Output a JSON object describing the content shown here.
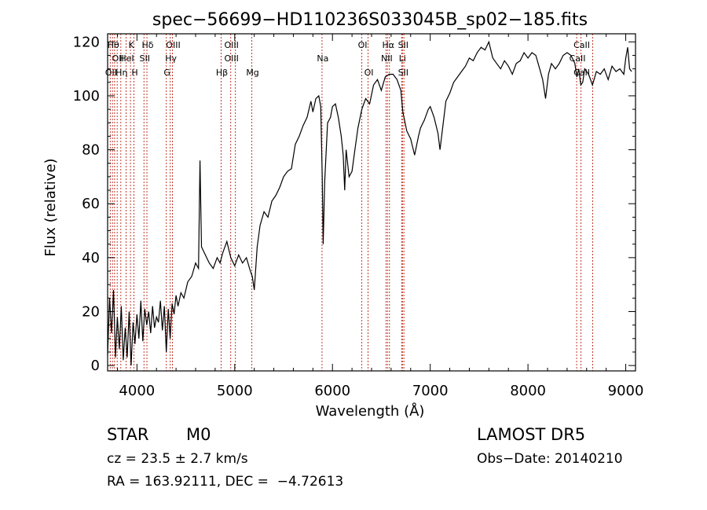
{
  "chart_data": {
    "type": "line",
    "title": "spec−56699−HD110236S033045B_sp02−185.fits",
    "xlabel": "Wavelength (Å)",
    "ylabel": "Flux (relative)",
    "xlim": [
      3700,
      9100
    ],
    "ylim": [
      -2,
      123
    ],
    "xticks": [
      4000,
      5000,
      6000,
      7000,
      8000,
      9000
    ],
    "yticks": [
      0,
      20,
      40,
      60,
      80,
      100,
      120
    ],
    "grid": false,
    "series": [
      {
        "values": [
          [
            3700,
            4
          ],
          [
            3720,
            25
          ],
          [
            3740,
            12
          ],
          [
            3760,
            28
          ],
          [
            3780,
            3
          ],
          [
            3800,
            18
          ],
          [
            3820,
            6
          ],
          [
            3840,
            22
          ],
          [
            3860,
            2
          ],
          [
            3880,
            14
          ],
          [
            3900,
            3
          ],
          [
            3920,
            20
          ],
          [
            3940,
            0
          ],
          [
            3960,
            16
          ],
          [
            3980,
            8
          ],
          [
            4000,
            19
          ],
          [
            4020,
            10
          ],
          [
            4040,
            24
          ],
          [
            4060,
            9
          ],
          [
            4080,
            21
          ],
          [
            4100,
            15
          ],
          [
            4120,
            20
          ],
          [
            4140,
            12
          ],
          [
            4160,
            22
          ],
          [
            4180,
            14
          ],
          [
            4200,
            18
          ],
          [
            4220,
            16
          ],
          [
            4240,
            24
          ],
          [
            4260,
            13
          ],
          [
            4280,
            22
          ],
          [
            4300,
            5
          ],
          [
            4320,
            21
          ],
          [
            4340,
            10
          ],
          [
            4360,
            23
          ],
          [
            4380,
            19
          ],
          [
            4400,
            26
          ],
          [
            4420,
            22
          ],
          [
            4450,
            27
          ],
          [
            4480,
            25
          ],
          [
            4520,
            31
          ],
          [
            4560,
            33
          ],
          [
            4600,
            38
          ],
          [
            4630,
            36
          ],
          [
            4645,
            76
          ],
          [
            4660,
            44
          ],
          [
            4700,
            41
          ],
          [
            4740,
            38
          ],
          [
            4780,
            36
          ],
          [
            4820,
            40
          ],
          [
            4850,
            38
          ],
          [
            4880,
            42
          ],
          [
            4920,
            46
          ],
          [
            4960,
            40
          ],
          [
            5000,
            37
          ],
          [
            5040,
            41
          ],
          [
            5080,
            38
          ],
          [
            5120,
            40
          ],
          [
            5160,
            35
          ],
          [
            5180,
            33
          ],
          [
            5200,
            28
          ],
          [
            5230,
            44
          ],
          [
            5260,
            52
          ],
          [
            5300,
            57
          ],
          [
            5340,
            55
          ],
          [
            5380,
            61
          ],
          [
            5420,
            63
          ],
          [
            5460,
            66
          ],
          [
            5500,
            70
          ],
          [
            5540,
            72
          ],
          [
            5580,
            73
          ],
          [
            5620,
            82
          ],
          [
            5660,
            85
          ],
          [
            5700,
            89
          ],
          [
            5740,
            92
          ],
          [
            5780,
            98
          ],
          [
            5800,
            94
          ],
          [
            5830,
            99
          ],
          [
            5860,
            100
          ],
          [
            5880,
            96
          ],
          [
            5895,
            70
          ],
          [
            5905,
            45
          ],
          [
            5920,
            68
          ],
          [
            5950,
            90
          ],
          [
            5980,
            92
          ],
          [
            6000,
            96
          ],
          [
            6030,
            97
          ],
          [
            6060,
            92
          ],
          [
            6090,
            85
          ],
          [
            6110,
            78
          ],
          [
            6125,
            65
          ],
          [
            6140,
            80
          ],
          [
            6170,
            70
          ],
          [
            6200,
            72
          ],
          [
            6230,
            80
          ],
          [
            6260,
            88
          ],
          [
            6300,
            95
          ],
          [
            6340,
            99
          ],
          [
            6380,
            97
          ],
          [
            6420,
            104
          ],
          [
            6460,
            106
          ],
          [
            6500,
            102
          ],
          [
            6540,
            107
          ],
          [
            6580,
            108
          ],
          [
            6620,
            108
          ],
          [
            6660,
            106
          ],
          [
            6700,
            102
          ],
          [
            6720,
            94
          ],
          [
            6760,
            87
          ],
          [
            6800,
            84
          ],
          [
            6840,
            78
          ],
          [
            6880,
            85
          ],
          [
            6900,
            88
          ],
          [
            6940,
            91
          ],
          [
            6980,
            95
          ],
          [
            7000,
            96
          ],
          [
            7040,
            92
          ],
          [
            7080,
            86
          ],
          [
            7100,
            80
          ],
          [
            7120,
            86
          ],
          [
            7160,
            98
          ],
          [
            7200,
            101
          ],
          [
            7240,
            105
          ],
          [
            7280,
            107
          ],
          [
            7320,
            109
          ],
          [
            7360,
            111
          ],
          [
            7400,
            114
          ],
          [
            7440,
            113
          ],
          [
            7480,
            116
          ],
          [
            7520,
            118
          ],
          [
            7560,
            117
          ],
          [
            7600,
            120
          ],
          [
            7640,
            114
          ],
          [
            7680,
            112
          ],
          [
            7720,
            110
          ],
          [
            7760,
            113
          ],
          [
            7800,
            111
          ],
          [
            7840,
            108
          ],
          [
            7880,
            112
          ],
          [
            7920,
            113
          ],
          [
            7960,
            116
          ],
          [
            8000,
            114
          ],
          [
            8040,
            116
          ],
          [
            8080,
            115
          ],
          [
            8120,
            110
          ],
          [
            8150,
            106
          ],
          [
            8180,
            99
          ],
          [
            8210,
            108
          ],
          [
            8240,
            112
          ],
          [
            8280,
            110
          ],
          [
            8320,
            112
          ],
          [
            8360,
            115
          ],
          [
            8400,
            116
          ],
          [
            8440,
            115
          ],
          [
            8480,
            112
          ],
          [
            8500,
            107
          ],
          [
            8520,
            110
          ],
          [
            8540,
            104
          ],
          [
            8560,
            105
          ],
          [
            8580,
            110
          ],
          [
            8620,
            108
          ],
          [
            8660,
            104
          ],
          [
            8700,
            109
          ],
          [
            8740,
            108
          ],
          [
            8780,
            110
          ],
          [
            8820,
            106
          ],
          [
            8860,
            111
          ],
          [
            8900,
            109
          ],
          [
            8940,
            110
          ],
          [
            8980,
            108
          ],
          [
            9000,
            114
          ],
          [
            9020,
            118
          ],
          [
            9040,
            110
          ],
          [
            9060,
            109
          ]
        ]
      }
    ],
    "lines": [
      {
        "x": 3727,
        "labels": [
          "OII"
        ],
        "row": [
          3
        ]
      },
      {
        "x": 3750,
        "labels": [
          "Hθ"
        ],
        "row": [
          1
        ]
      },
      {
        "x": 3771,
        "labels": [],
        "row": []
      },
      {
        "x": 3798,
        "labels": [
          "OII"
        ],
        "row": [
          2
        ]
      },
      {
        "x": 3835,
        "labels": [
          "Hη"
        ],
        "row": [
          3
        ]
      },
      {
        "x": 3889,
        "labels": [
          "HeI"
        ],
        "row": [
          2
        ]
      },
      {
        "x": 3934,
        "labels": [
          "K"
        ],
        "row": [
          1
        ]
      },
      {
        "x": 3969,
        "labels": [
          "H"
        ],
        "row": [
          3
        ]
      },
      {
        "x": 4072,
        "labels": [
          "SII"
        ],
        "row": [
          2
        ]
      },
      {
        "x": 4102,
        "labels": [
          "Hδ"
        ],
        "row": [
          1
        ]
      },
      {
        "x": 4300,
        "labels": [
          "G"
        ],
        "row": [
          3
        ]
      },
      {
        "x": 4340,
        "labels": [
          "Hγ"
        ],
        "row": [
          2
        ]
      },
      {
        "x": 4363,
        "labels": [
          "OIII"
        ],
        "row": [
          1
        ]
      },
      {
        "x": 4861,
        "labels": [
          "Hβ"
        ],
        "row": [
          3
        ]
      },
      {
        "x": 4959,
        "labels": [
          "OIII"
        ],
        "row": [
          1,
          2
        ]
      },
      {
        "x": 5007,
        "labels": [],
        "row": []
      },
      {
        "x": 5175,
        "labels": [
          "Mg"
        ],
        "row": [
          3
        ]
      },
      {
        "x": 5893,
        "labels": [
          "Na"
        ],
        "row": [
          2
        ]
      },
      {
        "x": 6300,
        "labels": [
          "OI"
        ],
        "row": [
          1
        ]
      },
      {
        "x": 6364,
        "labels": [
          "OI"
        ],
        "row": [
          3
        ]
      },
      {
        "x": 6548,
        "labels": [
          "NII"
        ],
        "row": [
          2
        ]
      },
      {
        "x": 6563,
        "labels": [
          "Hα"
        ],
        "row": [
          1
        ]
      },
      {
        "x": 6583,
        "labels": [],
        "row": []
      },
      {
        "x": 6708,
        "labels": [
          "Li"
        ],
        "row": [
          2
        ]
      },
      {
        "x": 6716,
        "labels": [
          "SII"
        ],
        "row": [
          1,
          3
        ]
      },
      {
        "x": 6731,
        "labels": [],
        "row": []
      },
      {
        "x": 8498,
        "labels": [
          "CaII"
        ],
        "row": [
          2
        ]
      },
      {
        "x": 8542,
        "labels": [
          "CaII"
        ],
        "row": [
          1,
          3
        ]
      },
      {
        "x": 8662,
        "labels": [],
        "row": []
      }
    ]
  },
  "footer": {
    "class_label": "STAR",
    "subclass": "M0",
    "survey": "LAMOST DR5",
    "cz": "cz = 23.5 ± 2.7 km/s",
    "obs_date": "Obs−Date: 20140210",
    "coords": "RA = 163.92111, DEC =  −4.72613"
  },
  "colors": {
    "lines": "#c0392b",
    "spectrum": "#000000"
  }
}
